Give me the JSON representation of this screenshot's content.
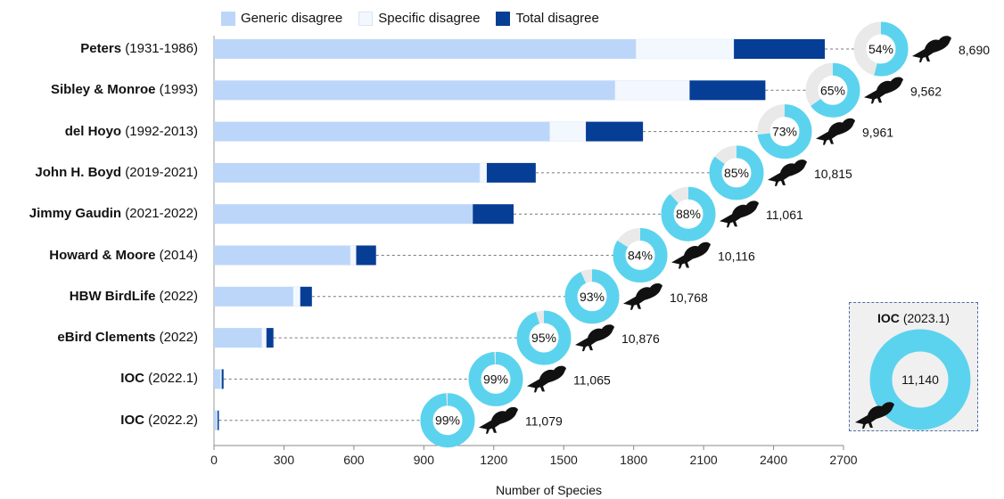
{
  "legend": {
    "generic": "Generic disagree",
    "specific": "Specific disagree",
    "total": "Total disagree"
  },
  "colors": {
    "generic": "#bcd6fa",
    "specific": "#f3f8ff",
    "total": "#063e96",
    "donut": "#5bd3ee",
    "donut_rest": "#e9e9e9",
    "grid_dash": "#777777"
  },
  "xlabel": "Number of Species",
  "inset": {
    "name": "IOC",
    "year": "(2023.1)",
    "value_label": "11,140"
  },
  "chart_data": {
    "type": "bar",
    "orientation": "horizontal",
    "stacked": true,
    "xlim": [
      0,
      2700
    ],
    "xticks": [
      "0",
      "300",
      "600",
      "900",
      "1200",
      "1500",
      "1800",
      "2100",
      "2400",
      "2700"
    ],
    "xlabel": "Number of Species",
    "categories": [
      {
        "name": "Peters",
        "years": "(1931-1986)"
      },
      {
        "name": "Sibley &  Monroe",
        "years": "(1993)"
      },
      {
        "name": "del Hoyo",
        "years": "(1992-2013)"
      },
      {
        "name": "John H. Boyd",
        "years": "(2019-2021)"
      },
      {
        "name": "Jimmy  Gaudin",
        "years": "(2021-2022)"
      },
      {
        "name": "Howard & Moore",
        "years": "(2014)"
      },
      {
        "name": "HBW BirdLife",
        "years": "(2022)"
      },
      {
        "name": "eBird Clements",
        "years": "(2022)"
      },
      {
        "name": "IOC",
        "years": " (2022.1)"
      },
      {
        "name": "IOC",
        "years": " (2022.2)"
      }
    ],
    "series": [
      {
        "name": "Generic disagree",
        "values": [
          1810,
          1720,
          1440,
          1140,
          1110,
          585,
          340,
          205,
          28,
          12
        ]
      },
      {
        "name": "Specific disagree",
        "values": [
          420,
          320,
          155,
          30,
          0,
          25,
          30,
          20,
          5,
          3
        ]
      },
      {
        "name": "Total disagree",
        "values": [
          390,
          325,
          245,
          210,
          175,
          85,
          50,
          30,
          8,
          6
        ]
      }
    ],
    "agreement": [
      {
        "percent_label": "54%",
        "percent": 54,
        "species_label": "8,690"
      },
      {
        "percent_label": "65%",
        "percent": 65,
        "species_label": "9,562"
      },
      {
        "percent_label": "73%",
        "percent": 73,
        "species_label": "9,961"
      },
      {
        "percent_label": "85%",
        "percent": 85,
        "species_label": "10,815"
      },
      {
        "percent_label": "88%",
        "percent": 88,
        "species_label": "11,061"
      },
      {
        "percent_label": "84%",
        "percent": 84,
        "species_label": "10,116"
      },
      {
        "percent_label": "93%",
        "percent": 93,
        "species_label": "10,768"
      },
      {
        "percent_label": "95%",
        "percent": 95,
        "species_label": "10,876"
      },
      {
        "percent_label": "99%",
        "percent": 99,
        "species_label": "11,065"
      },
      {
        "percent_label": "99%",
        "percent": 99,
        "species_label": "11,079"
      }
    ],
    "grid": false,
    "legend_position": "top"
  }
}
